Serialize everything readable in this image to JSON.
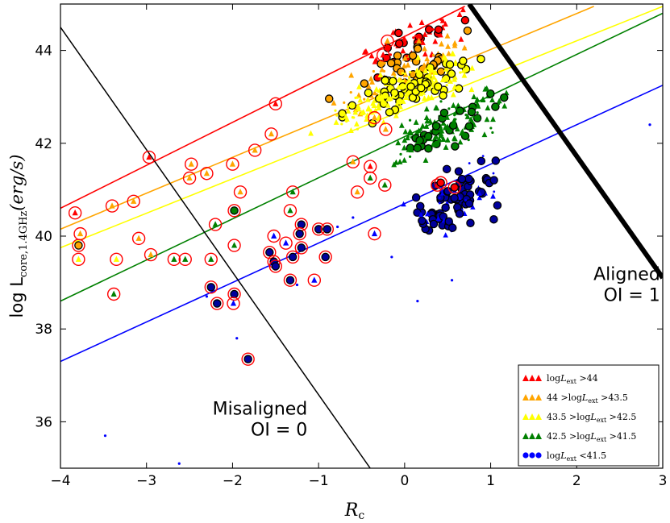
{
  "chart_data": {
    "type": "scatter",
    "title": "",
    "xlabel": "R",
    "xlabel_sub": "c",
    "ylabel_prefix": "log L",
    "ylabel_sub": "core,1.4GHz",
    "ylabel_suffix": "(erg/s)",
    "xlim": [
      -4,
      3
    ],
    "ylim": [
      35,
      45
    ],
    "x_ticks": [
      -4,
      -3,
      -2,
      -1,
      0,
      1,
      2,
      3
    ],
    "x_tick_labels": [
      "−4",
      "−3",
      "−2",
      "−1",
      "0",
      "1",
      "2",
      "3"
    ],
    "y_ticks": [
      36,
      38,
      40,
      42,
      44
    ],
    "y_tick_labels": [
      "36",
      "38",
      "40",
      "42",
      "44"
    ],
    "grid": false,
    "legend_position": "bottom-right",
    "annotations": [
      {
        "id": "aligned",
        "lines": [
          "Aligned",
          "OI = 1"
        ],
        "x": 2.97,
        "y": 38.6,
        "anchor": "end"
      },
      {
        "id": "misaligned",
        "lines": [
          "Misaligned",
          "OI = 0"
        ],
        "x": -1.13,
        "y": 35.7,
        "anchor": "end"
      }
    ],
    "series": [
      {
        "name": "logL_ext > 44",
        "legend": "log L_ext > 44",
        "color": "#ff0000",
        "line": [
          [
            -4,
            40.6
          ],
          [
            0.7,
            44.95
          ]
        ]
      },
      {
        "name": "44 > logL_ext > 43.5",
        "legend": "44 > log L_ext > 43.5",
        "color": "#ffa500",
        "line": [
          [
            -4,
            40.15
          ],
          [
            2.2,
            44.95
          ]
        ]
      },
      {
        "name": "43.5 > logL_ext > 42.5",
        "legend": "43.5 > log L_ext > 42.5",
        "color": "#ffff00",
        "line": [
          [
            -4,
            39.75
          ],
          [
            3,
            44.95
          ]
        ]
      },
      {
        "name": "42.5 > logL_ext > 41.5",
        "legend": "42.5 > log L_ext > 41.5",
        "color": "#008000",
        "line": [
          [
            -4,
            38.6
          ],
          [
            3,
            44.8
          ]
        ]
      },
      {
        "name": "logL_ext < 41.5",
        "legend": "log L_ext < 41.5",
        "color": "#0000ff",
        "line": [
          [
            -4,
            37.3
          ],
          [
            3,
            43.25
          ]
        ]
      }
    ],
    "divider_lines": [
      {
        "name": "misaligned-boundary",
        "points": [
          [
            -4,
            44.5
          ],
          [
            -0.4,
            35
          ]
        ],
        "width": 1.5
      },
      {
        "name": "aligned-boundary",
        "points": [
          [
            0.75,
            45
          ],
          [
            3,
            39.1
          ]
        ],
        "width": 6
      }
    ],
    "sample_points": [
      {
        "x": -3.83,
        "y": 40.5,
        "series": 0,
        "marker": "triangle",
        "circled": true
      },
      {
        "x": -3.77,
        "y": 40.05,
        "series": 1,
        "marker": "triangle",
        "circled": true
      },
      {
        "x": -3.79,
        "y": 39.8,
        "series": 1,
        "marker": "circle",
        "circled": true
      },
      {
        "x": -3.79,
        "y": 39.5,
        "series": 2,
        "marker": "triangle",
        "circled": true
      },
      {
        "x": -3.4,
        "y": 40.65,
        "series": 1,
        "marker": "triangle",
        "circled": true
      },
      {
        "x": -3.15,
        "y": 40.75,
        "series": 1,
        "marker": "triangle",
        "circled": true
      },
      {
        "x": -3.09,
        "y": 39.95,
        "series": 1,
        "marker": "triangle",
        "circled": true
      },
      {
        "x": -3.35,
        "y": 39.5,
        "series": 2,
        "marker": "triangle",
        "circled": true
      },
      {
        "x": -2.95,
        "y": 39.6,
        "series": 1,
        "marker": "triangle",
        "circled": true
      },
      {
        "x": -3.38,
        "y": 38.75,
        "series": 3,
        "marker": "triangle",
        "circled": true
      },
      {
        "x": -2.97,
        "y": 41.7,
        "series": 0,
        "marker": "triangle",
        "circled": true
      },
      {
        "x": -2.48,
        "y": 41.55,
        "series": 1,
        "marker": "triangle",
        "circled": true
      },
      {
        "x": -2.3,
        "y": 41.35,
        "series": 1,
        "marker": "triangle",
        "circled": true
      },
      {
        "x": -2.5,
        "y": 41.25,
        "series": 1,
        "marker": "triangle",
        "circled": true
      },
      {
        "x": -2.68,
        "y": 39.5,
        "series": 3,
        "marker": "triangle",
        "circled": true
      },
      {
        "x": -2.55,
        "y": 39.5,
        "series": 3,
        "marker": "triangle",
        "circled": true
      },
      {
        "x": -2.2,
        "y": 40.25,
        "series": 3,
        "marker": "triangle",
        "circled": true
      },
      {
        "x": -2.25,
        "y": 39.5,
        "series": 3,
        "marker": "triangle",
        "circled": true
      },
      {
        "x": -2.25,
        "y": 38.9,
        "series": 4,
        "marker": "circle",
        "circled": true
      },
      {
        "x": -2.18,
        "y": 38.55,
        "series": 4,
        "marker": "circle",
        "circled": true
      },
      {
        "x": -1.98,
        "y": 38.75,
        "series": 4,
        "marker": "circle",
        "circled": true
      },
      {
        "x": -1.99,
        "y": 38.55,
        "series": 4,
        "marker": "triangle",
        "circled": true
      },
      {
        "x": -1.98,
        "y": 39.8,
        "series": 3,
        "marker": "triangle",
        "circled": true
      },
      {
        "x": -1.98,
        "y": 40.55,
        "series": 3,
        "marker": "circle",
        "circled": true
      },
      {
        "x": -2.0,
        "y": 41.55,
        "series": 1,
        "marker": "triangle",
        "circled": true
      },
      {
        "x": -1.91,
        "y": 40.95,
        "series": 1,
        "marker": "triangle",
        "circled": true
      },
      {
        "x": -1.82,
        "y": 37.35,
        "series": 4,
        "marker": "circle",
        "circled": true
      },
      {
        "x": -1.74,
        "y": 41.85,
        "series": 1,
        "marker": "triangle",
        "circled": true
      },
      {
        "x": -1.57,
        "y": 39.65,
        "series": 4,
        "marker": "circle",
        "circled": true
      },
      {
        "x": -1.52,
        "y": 39.45,
        "series": 4,
        "marker": "circle",
        "circled": true
      },
      {
        "x": -1.5,
        "y": 39.35,
        "series": 4,
        "marker": "circle",
        "circled": true
      },
      {
        "x": -1.52,
        "y": 40.0,
        "series": 4,
        "marker": "triangle",
        "circled": true
      },
      {
        "x": -1.38,
        "y": 39.85,
        "series": 4,
        "marker": "triangle",
        "circled": true
      },
      {
        "x": -1.33,
        "y": 39.05,
        "series": 4,
        "marker": "circle",
        "circled": true
      },
      {
        "x": -1.3,
        "y": 39.55,
        "series": 4,
        "marker": "circle",
        "circled": true
      },
      {
        "x": -1.2,
        "y": 40.25,
        "series": 4,
        "marker": "circle",
        "circled": true
      },
      {
        "x": -1.2,
        "y": 39.75,
        "series": 4,
        "marker": "circle",
        "circled": true
      },
      {
        "x": -1.22,
        "y": 40.05,
        "series": 4,
        "marker": "circle",
        "circled": true
      },
      {
        "x": -1.0,
        "y": 40.15,
        "series": 4,
        "marker": "circle",
        "circled": true
      },
      {
        "x": -0.9,
        "y": 40.15,
        "series": 4,
        "marker": "circle",
        "circled": true
      },
      {
        "x": -0.92,
        "y": 39.55,
        "series": 4,
        "marker": "circle",
        "circled": true
      },
      {
        "x": -1.05,
        "y": 39.05,
        "series": 4,
        "marker": "triangle",
        "circled": true
      },
      {
        "x": -1.3,
        "y": 40.95,
        "series": 3,
        "marker": "triangle",
        "circled": true
      },
      {
        "x": -1.33,
        "y": 40.55,
        "series": 3,
        "marker": "triangle",
        "circled": true
      },
      {
        "x": -1.55,
        "y": 42.2,
        "series": 1,
        "marker": "triangle",
        "circled": true
      },
      {
        "x": -1.5,
        "y": 42.85,
        "series": 0,
        "marker": "triangle",
        "circled": true
      },
      {
        "x": -0.6,
        "y": 41.6,
        "series": 1,
        "marker": "triangle",
        "circled": true
      },
      {
        "x": -0.55,
        "y": 40.95,
        "series": 1,
        "marker": "triangle",
        "circled": true
      },
      {
        "x": -0.4,
        "y": 41.25,
        "series": 3,
        "marker": "triangle",
        "circled": true
      },
      {
        "x": -0.4,
        "y": 41.5,
        "series": 0,
        "marker": "triangle",
        "circled": true
      },
      {
        "x": -0.35,
        "y": 42.55,
        "series": 1,
        "marker": "triangle",
        "circled": true
      },
      {
        "x": -0.23,
        "y": 41.1,
        "series": 3,
        "marker": "triangle",
        "circled": true
      },
      {
        "x": -0.25,
        "y": 43.9,
        "series": 0,
        "marker": "triangle",
        "circled": true
      },
      {
        "x": -0.2,
        "y": 44.2,
        "series": 1,
        "marker": "triangle",
        "circled": true
      },
      {
        "x": -0.22,
        "y": 42.3,
        "series": 1,
        "marker": "triangle",
        "circled": true
      },
      {
        "x": -0.35,
        "y": 40.05,
        "series": 4,
        "marker": "triangle",
        "circled": true
      },
      {
        "x": 0.38,
        "y": 41.1,
        "series": 0,
        "marker": "triangle",
        "circled": true
      },
      {
        "x": 0.42,
        "y": 41.15,
        "series": 0,
        "marker": "circle",
        "circled": true
      },
      {
        "x": 0.58,
        "y": 41.05,
        "series": 0,
        "marker": "circle",
        "circled": true
      }
    ]
  },
  "legend": {
    "items": [
      {
        "prefix": "log",
        "var": "L",
        "sub": "ext",
        "rel": " >44"
      },
      {
        "prefix": "44 >log",
        "var": "L",
        "sub": "ext",
        "rel": " >43.5"
      },
      {
        "prefix": "43.5 >log",
        "var": "L",
        "sub": "ext",
        "rel": " >42.5"
      },
      {
        "prefix": "42.5 >log",
        "var": "L",
        "sub": "ext",
        "rel": " >41.5"
      },
      {
        "prefix": "log",
        "var": "L",
        "sub": "ext",
        "rel": " <41.5"
      }
    ]
  }
}
